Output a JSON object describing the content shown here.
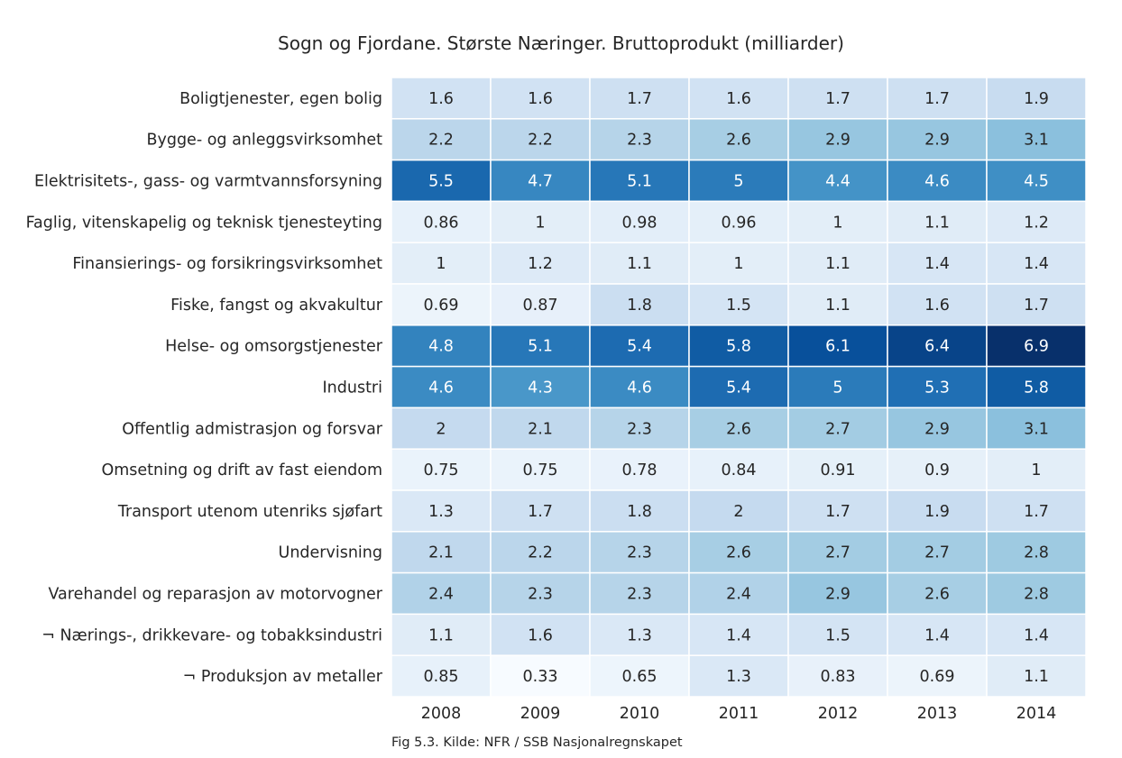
{
  "chart_data": {
    "type": "heatmap",
    "title": "Sogn og Fjordane. Største Næringer. Bruttoprodukt (milliarder)",
    "caption": "Fig 5.3. Kilde: NFR / SSB Nasjonalregnskapet",
    "columns": [
      "2008",
      "2009",
      "2010",
      "2011",
      "2012",
      "2013",
      "2014"
    ],
    "rows": [
      "Boligtjenester, egen bolig",
      "Bygge- og anleggsvirksomhet",
      "Elektrisitets-, gass- og varmtvannsforsyning",
      "Faglig, vitenskapelig og teknisk tjenesteyting",
      "Finansierings- og forsikringsvirksomhet",
      "Fiske, fangst og akvakultur",
      "Helse- og omsorgstjenester",
      "Industri",
      "Offentlig admistrasjon og forsvar",
      "Omsetning og drift av fast eiendom",
      "Transport utenom utenriks sjøfart",
      "Undervisning",
      "Varehandel og reparasjon av motorvogner",
      "¬ Nærings-, drikkevare- og tobakksindustri",
      "¬ Produksjon av metaller"
    ],
    "values": [
      [
        "1.6",
        "1.6",
        "1.7",
        "1.6",
        "1.7",
        "1.7",
        "1.9"
      ],
      [
        "2.2",
        "2.2",
        "2.3",
        "2.6",
        "2.9",
        "2.9",
        "3.1"
      ],
      [
        "5.5",
        "4.7",
        "5.1",
        "5",
        "4.4",
        "4.6",
        "4.5"
      ],
      [
        "0.86",
        "1",
        "0.98",
        "0.96",
        "1",
        "1.1",
        "1.2"
      ],
      [
        "1",
        "1.2",
        "1.1",
        "1",
        "1.1",
        "1.4",
        "1.4"
      ],
      [
        "0.69",
        "0.87",
        "1.8",
        "1.5",
        "1.1",
        "1.6",
        "1.7"
      ],
      [
        "4.8",
        "5.1",
        "5.4",
        "5.8",
        "6.1",
        "6.4",
        "6.9"
      ],
      [
        "4.6",
        "4.3",
        "4.6",
        "5.4",
        "5",
        "5.3",
        "5.8"
      ],
      [
        "2",
        "2.1",
        "2.3",
        "2.6",
        "2.7",
        "2.9",
        "3.1"
      ],
      [
        "0.75",
        "0.75",
        "0.78",
        "0.84",
        "0.91",
        "0.9",
        "1"
      ],
      [
        "1.3",
        "1.7",
        "1.8",
        "2",
        "1.7",
        "1.9",
        "1.7"
      ],
      [
        "2.1",
        "2.2",
        "2.3",
        "2.6",
        "2.7",
        "2.7",
        "2.8"
      ],
      [
        "2.4",
        "2.3",
        "2.3",
        "2.4",
        "2.9",
        "2.6",
        "2.8"
      ],
      [
        "1.1",
        "1.6",
        "1.3",
        "1.4",
        "1.5",
        "1.4",
        "1.4"
      ],
      [
        "0.85",
        "0.33",
        "0.65",
        "1.3",
        "0.83",
        "0.69",
        "1.1"
      ]
    ],
    "colormap": "Blues",
    "value_range": [
      0.33,
      6.9
    ]
  }
}
